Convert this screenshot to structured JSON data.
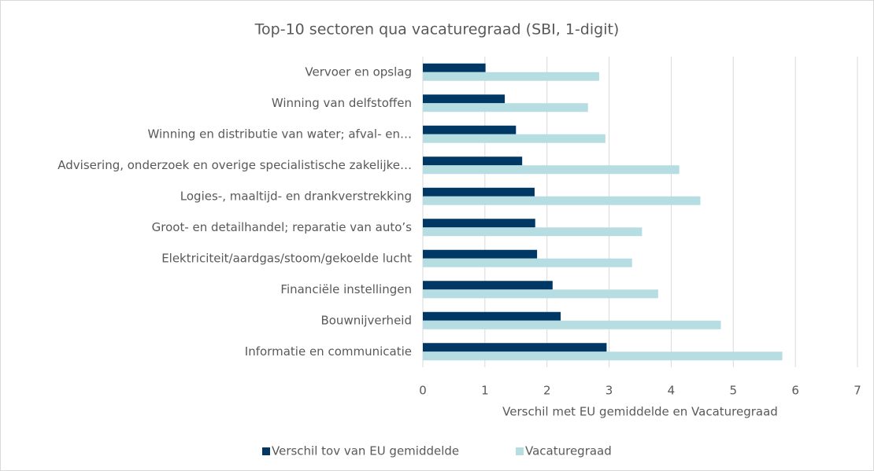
{
  "chart_data": {
    "type": "barh",
    "title": "Top-10 sectoren qua vacaturegraad (SBI, 1-digit)",
    "x_label": "Verschil met EU gemiddelde en Vacaturegraad",
    "categories": [
      "Vervoer en opslag",
      "Winning van delfstoffen",
      "Winning en distributie van water; afval- en…",
      "Advisering, onderzoek en overige specialistische zakelijke…",
      "Logies-, maaltijd- en drankverstrekking",
      "Groot- en detailhandel; reparatie van auto’s",
      "Elektriciteit/aardgas/stoom/gekoelde lucht",
      "Financiële instellingen",
      "Bouwnijverheid",
      "Informatie en communicatie"
    ],
    "series": [
      {
        "name": "Verschil tov van EU gemiddelde",
        "color": "#003865",
        "values": [
          1.01,
          1.32,
          1.5,
          1.6,
          1.8,
          1.81,
          1.84,
          2.09,
          2.22,
          2.96
        ]
      },
      {
        "name": "Vacaturegraad",
        "color": "#b6dde1",
        "values": [
          2.84,
          2.66,
          2.94,
          4.13,
          4.47,
          3.53,
          3.37,
          3.79,
          4.8,
          5.79
        ]
      }
    ],
    "xlim": [
      0,
      7
    ],
    "xticks": [
      0,
      1,
      2,
      3,
      4,
      5,
      6,
      7
    ],
    "grid": true,
    "legend": "bottom"
  }
}
